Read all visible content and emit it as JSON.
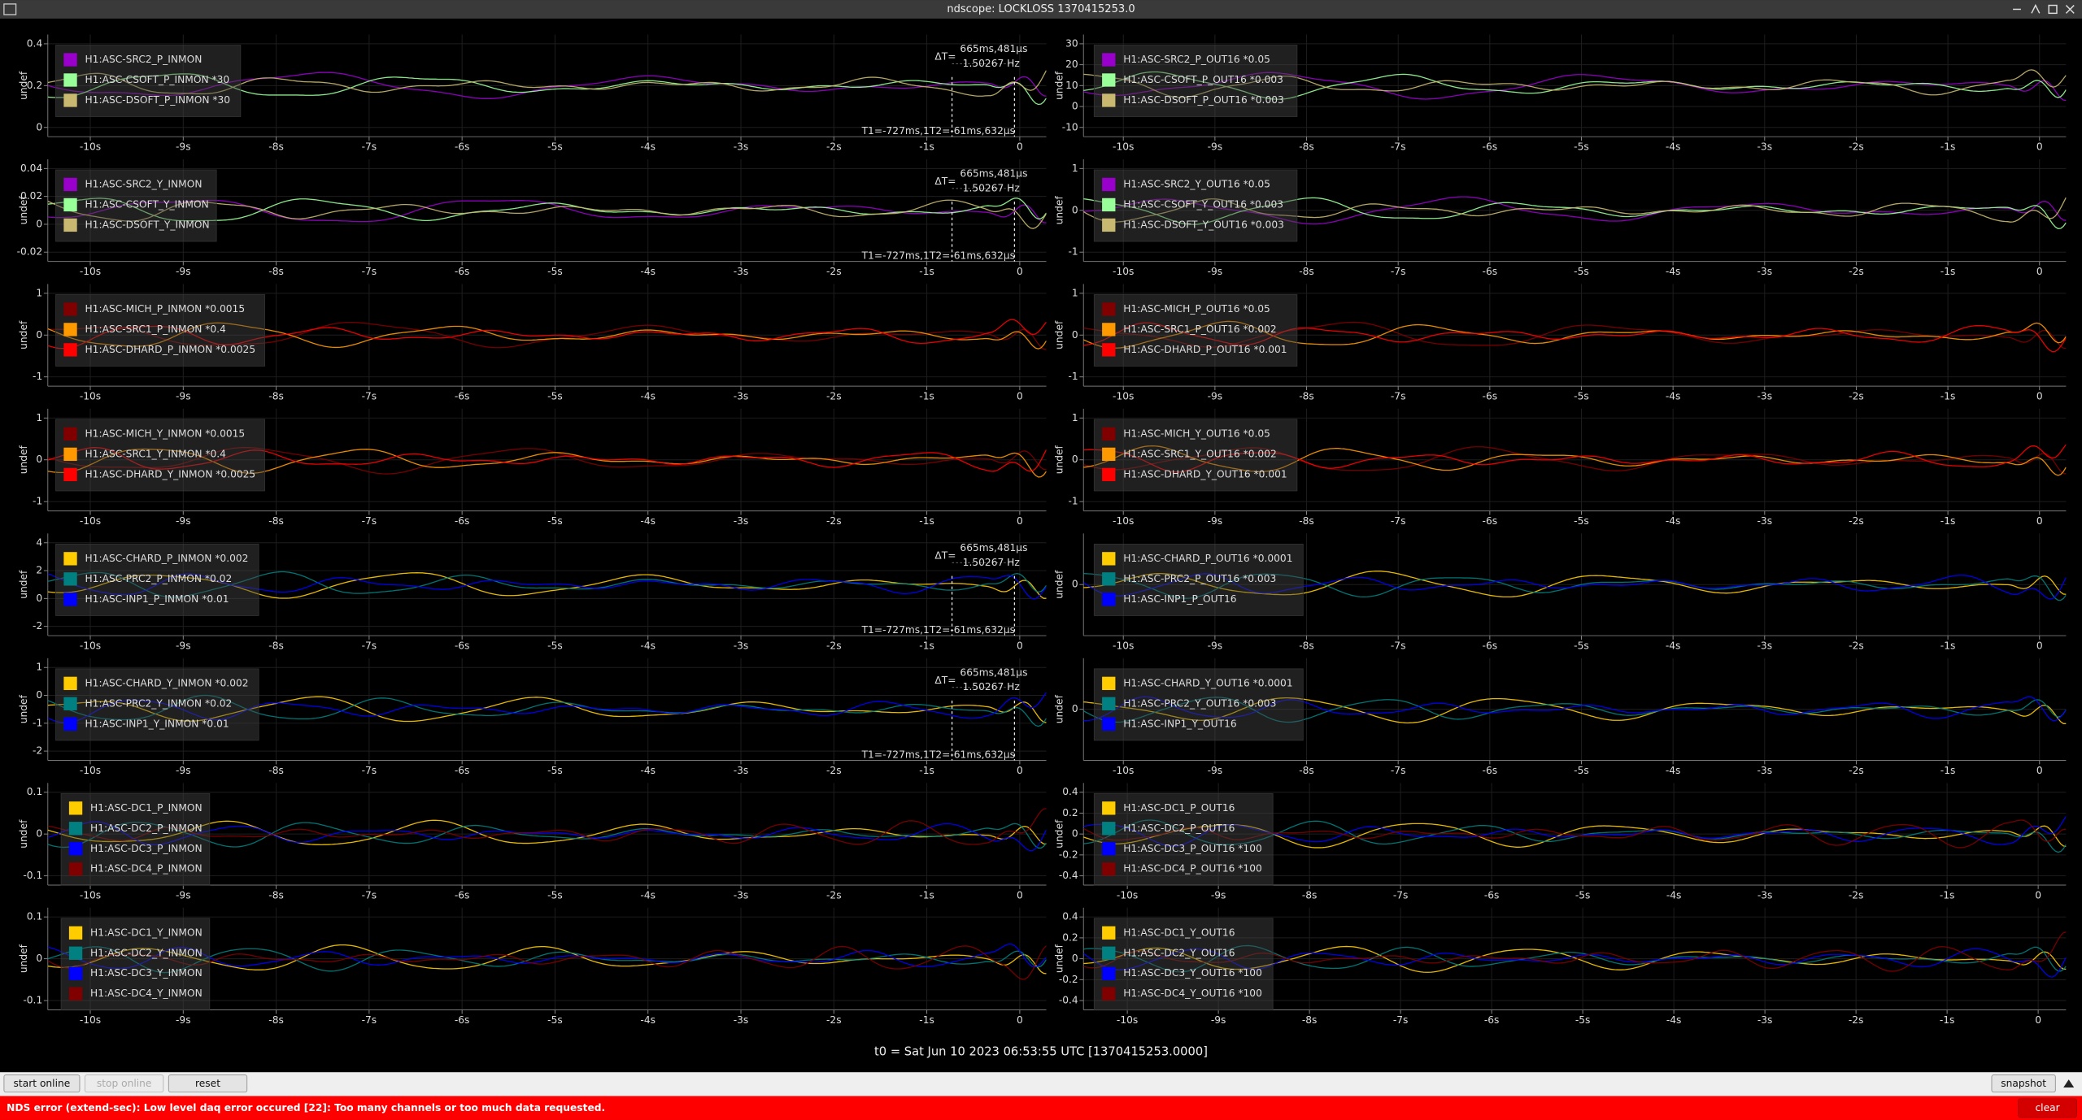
{
  "window_title": "ndscope: LOCKLOSS 1370415253.0",
  "x_ticks": [
    "-10s",
    "-9s",
    "-8s",
    "-7s",
    "-6s",
    "-5s",
    "-4s",
    "-3s",
    "-2s",
    "-1s",
    "0"
  ],
  "plots": [
    {
      "y_label": "undef",
      "y_ticks": [
        "0.4",
        "0.2",
        "0"
      ],
      "legend": [
        {
          "name": "H1:ASC-SRC2_P_INMON",
          "color": "#9900cc"
        },
        {
          "name": "H1:ASC-CSOFT_P_INMON *30",
          "color": "#99ff99"
        },
        {
          "name": "H1:ASC-DSOFT_P_INMON *30",
          "color": "#c8b870"
        }
      ],
      "cursor": {
        "delta": "ΔT=",
        "dt": "665ms,481μs",
        "freq": "1.50267 Hz",
        "t1": "T1=-727ms,1",
        "t2": "T2=-61ms,632μs"
      }
    },
    {
      "y_label": "undef",
      "y_ticks": [
        "30",
        "20",
        "10",
        "0",
        "-10"
      ],
      "legend": [
        {
          "name": "H1:ASC-SRC2_P_OUT16 *0.05",
          "color": "#9900cc"
        },
        {
          "name": "H1:ASC-CSOFT_P_OUT16 *0.003",
          "color": "#99ff99"
        },
        {
          "name": "H1:ASC-DSOFT_P_OUT16 *0.003",
          "color": "#c8b870"
        }
      ]
    },
    {
      "y_label": "undef",
      "y_ticks": [
        "0.04",
        "0.02",
        "0",
        "-0.02"
      ],
      "legend": [
        {
          "name": "H1:ASC-SRC2_Y_INMON",
          "color": "#9900cc"
        },
        {
          "name": "H1:ASC-CSOFT_Y_INMON",
          "color": "#99ff99"
        },
        {
          "name": "H1:ASC-DSOFT_Y_INMON",
          "color": "#c8b870"
        }
      ],
      "cursor": {
        "delta": "ΔT=",
        "dt": "665ms,481μs",
        "freq": "1.50267 Hz",
        "t1": "T1=-727ms,1",
        "t2": "T2=-61ms,632μs"
      }
    },
    {
      "y_label": "undef",
      "y_ticks": [
        "1",
        "0",
        "-1"
      ],
      "legend": [
        {
          "name": "H1:ASC-SRC2_Y_OUT16 *0.05",
          "color": "#9900cc"
        },
        {
          "name": "H1:ASC-CSOFT_Y_OUT16 *0.003",
          "color": "#99ff99"
        },
        {
          "name": "H1:ASC-DSOFT_Y_OUT16 *0.003",
          "color": "#c8b870"
        }
      ]
    },
    {
      "y_label": "undef",
      "y_ticks": [
        "1",
        "0",
        "-1"
      ],
      "legend": [
        {
          "name": "H1:ASC-MICH_P_INMON *0.0015",
          "color": "#800000"
        },
        {
          "name": "H1:ASC-SRC1_P_INMON *0.4",
          "color": "#ff9900"
        },
        {
          "name": "H1:ASC-DHARD_P_INMON *0.0025",
          "color": "#ff0000"
        }
      ]
    },
    {
      "y_label": "undef",
      "y_ticks": [
        "1",
        "0",
        "-1"
      ],
      "legend": [
        {
          "name": "H1:ASC-MICH_P_OUT16 *0.05",
          "color": "#800000"
        },
        {
          "name": "H1:ASC-SRC1_P_OUT16 *0.002",
          "color": "#ff9900"
        },
        {
          "name": "H1:ASC-DHARD_P_OUT16 *0.001",
          "color": "#ff0000"
        }
      ]
    },
    {
      "y_label": "undef",
      "y_ticks": [
        "1",
        "0",
        "-1"
      ],
      "legend": [
        {
          "name": "H1:ASC-MICH_Y_INMON *0.0015",
          "color": "#800000"
        },
        {
          "name": "H1:ASC-SRC1_Y_INMON *0.4",
          "color": "#ff9900"
        },
        {
          "name": "H1:ASC-DHARD_Y_INMON *0.0025",
          "color": "#ff0000"
        }
      ]
    },
    {
      "y_label": "undef",
      "y_ticks": [
        "1",
        "0",
        "-1"
      ],
      "legend": [
        {
          "name": "H1:ASC-MICH_Y_OUT16 *0.05",
          "color": "#800000"
        },
        {
          "name": "H1:ASC-SRC1_Y_OUT16 *0.002",
          "color": "#ff9900"
        },
        {
          "name": "H1:ASC-DHARD_Y_OUT16 *0.001",
          "color": "#ff0000"
        }
      ]
    },
    {
      "y_label": "undef",
      "y_ticks": [
        "4",
        "2",
        "0",
        "-2"
      ],
      "legend": [
        {
          "name": "H1:ASC-CHARD_P_INMON *0.002",
          "color": "#ffcc00"
        },
        {
          "name": "H1:ASC-PRC2_P_INMON *0.02",
          "color": "#008080"
        },
        {
          "name": "H1:ASC-INP1_P_INMON *0.01",
          "color": "#0000ff"
        }
      ],
      "cursor": {
        "delta": "ΔT=",
        "dt": "665ms,481μs",
        "freq": "1.50267 Hz",
        "t1": "T1=-727ms,1",
        "t2": "T2=-61ms,632μs"
      }
    },
    {
      "y_label": "undef",
      "y_ticks": [
        "0"
      ],
      "legend": [
        {
          "name": "H1:ASC-CHARD_P_OUT16 *0.0001",
          "color": "#ffcc00"
        },
        {
          "name": "H1:ASC-PRC2_P_OUT16 *0.003",
          "color": "#008080"
        },
        {
          "name": "H1:ASC-INP1_P_OUT16",
          "color": "#0000ff"
        }
      ]
    },
    {
      "y_label": "undef",
      "y_ticks": [
        "1",
        "0",
        "-1",
        "-2"
      ],
      "legend": [
        {
          "name": "H1:ASC-CHARD_Y_INMON *0.002",
          "color": "#ffcc00"
        },
        {
          "name": "H1:ASC-PRC2_Y_INMON *0.02",
          "color": "#008080"
        },
        {
          "name": "H1:ASC-INP1_Y_INMON *0.01",
          "color": "#0000ff"
        }
      ],
      "cursor": {
        "delta": "ΔT=",
        "dt": "665ms,481μs",
        "freq": "1.50267 Hz",
        "t1": "T1=-727ms,1",
        "t2": "T2=-61ms,632μs"
      }
    },
    {
      "y_label": "undef",
      "y_ticks": [
        "0"
      ],
      "legend": [
        {
          "name": "H1:ASC-CHARD_Y_OUT16 *0.0001",
          "color": "#ffcc00"
        },
        {
          "name": "H1:ASC-PRC2_Y_OUT16 *0.003",
          "color": "#008080"
        },
        {
          "name": "H1:ASC-INP1_Y_OUT16",
          "color": "#0000ff"
        }
      ]
    },
    {
      "y_label": "undef",
      "y_ticks": [
        "0.1",
        "0",
        "-0.1"
      ],
      "legend": [
        {
          "name": "H1:ASC-DC1_P_INMON",
          "color": "#ffcc00"
        },
        {
          "name": "H1:ASC-DC2_P_INMON",
          "color": "#008080"
        },
        {
          "name": "H1:ASC-DC3_P_INMON",
          "color": "#0000ff"
        },
        {
          "name": "H1:ASC-DC4_P_INMON",
          "color": "#800000"
        }
      ]
    },
    {
      "y_label": "undef",
      "y_ticks": [
        "0.4",
        "0.2",
        "0",
        "-0.2",
        "-0.4"
      ],
      "legend": [
        {
          "name": "H1:ASC-DC1_P_OUT16",
          "color": "#ffcc00"
        },
        {
          "name": "H1:ASC-DC2_P_OUT16",
          "color": "#008080"
        },
        {
          "name": "H1:ASC-DC3_P_OUT16 *100",
          "color": "#0000ff"
        },
        {
          "name": "H1:ASC-DC4_P_OUT16 *100",
          "color": "#800000"
        }
      ]
    },
    {
      "y_label": "undef",
      "y_ticks": [
        "0.1",
        "0",
        "-0.1"
      ],
      "legend": [
        {
          "name": "H1:ASC-DC1_Y_INMON",
          "color": "#ffcc00"
        },
        {
          "name": "H1:ASC-DC2_Y_INMON",
          "color": "#008080"
        },
        {
          "name": "H1:ASC-DC3_Y_INMON",
          "color": "#0000ff"
        },
        {
          "name": "H1:ASC-DC4_Y_INMON",
          "color": "#800000"
        }
      ]
    },
    {
      "y_label": "undef",
      "y_ticks": [
        "0.4",
        "0.2",
        "0",
        "-0.2",
        "-0.4"
      ],
      "legend": [
        {
          "name": "H1:ASC-DC1_Y_OUT16",
          "color": "#ffcc00"
        },
        {
          "name": "H1:ASC-DC2_Y_OUT16",
          "color": "#008080"
        },
        {
          "name": "H1:ASC-DC3_Y_OUT16 *100",
          "color": "#0000ff"
        },
        {
          "name": "H1:ASC-DC4_Y_OUT16 *100",
          "color": "#800000"
        }
      ]
    }
  ],
  "t0_label": "t0 = Sat Jun 10 2023 06:53:55 UTC [1370415253.0000]",
  "buttons": {
    "start": "start online",
    "stop": "stop online",
    "reset": "reset",
    "snapshot": "snapshot",
    "clear": "clear"
  },
  "status_error": "NDS error (extend-sec): Low level daq error occured [22]: Too many channels or too much data requested."
}
